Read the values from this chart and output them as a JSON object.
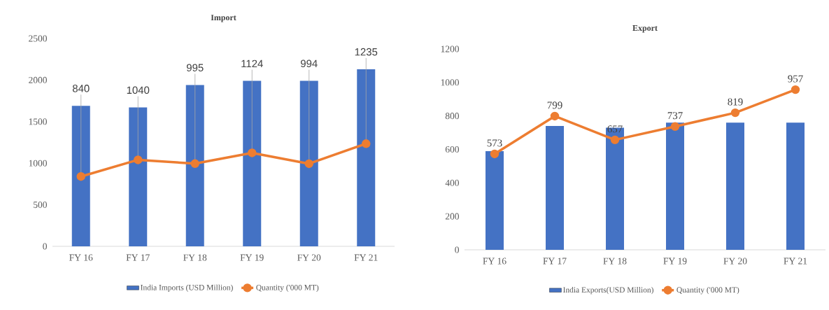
{
  "chart_data": [
    {
      "type": "bar",
      "title": "Import",
      "categories": [
        "FY 16",
        "FY 17",
        "FY 18",
        "FY 19",
        "FY 20",
        "FY 21"
      ],
      "series": [
        {
          "name": "India Imports (USD Million)",
          "color": "#4472c4",
          "values": [
            1690,
            1670,
            1940,
            1990,
            1990,
            2130
          ]
        },
        {
          "name": "Quantity ('000 MT)",
          "type": "line",
          "color": "#ed7d31",
          "values": [
            840,
            1040,
            995,
            1124,
            994,
            1235
          ],
          "value_labels": [
            "840",
            "1040",
            "995",
            "1124",
            "994",
            "1235"
          ]
        }
      ],
      "ylim": [
        0,
        2500
      ],
      "yticks": [
        0,
        500,
        1000,
        1500,
        2000,
        2500
      ],
      "legend": "bottom",
      "marker": "circle"
    },
    {
      "type": "bar",
      "title": "Export",
      "categories": [
        "FY 16",
        "FY 17",
        "FY 18",
        "FY 19",
        "FY 20",
        "FY 21"
      ],
      "series": [
        {
          "name": "India Exports(USD Million)",
          "color": "#4472c4",
          "values": [
            590,
            740,
            730,
            760,
            760,
            760
          ]
        },
        {
          "name": "Quantity ('000 MT)",
          "type": "line",
          "color": "#ed7d31",
          "values": [
            573,
            799,
            657,
            737,
            819,
            957
          ],
          "value_labels": [
            "573",
            "799",
            "657",
            "737",
            "819",
            "957"
          ]
        }
      ],
      "ylim": [
        0,
        1200
      ],
      "yticks": [
        0,
        200,
        400,
        600,
        800,
        1000,
        1200
      ],
      "legend": "bottom",
      "marker": "circle"
    }
  ]
}
